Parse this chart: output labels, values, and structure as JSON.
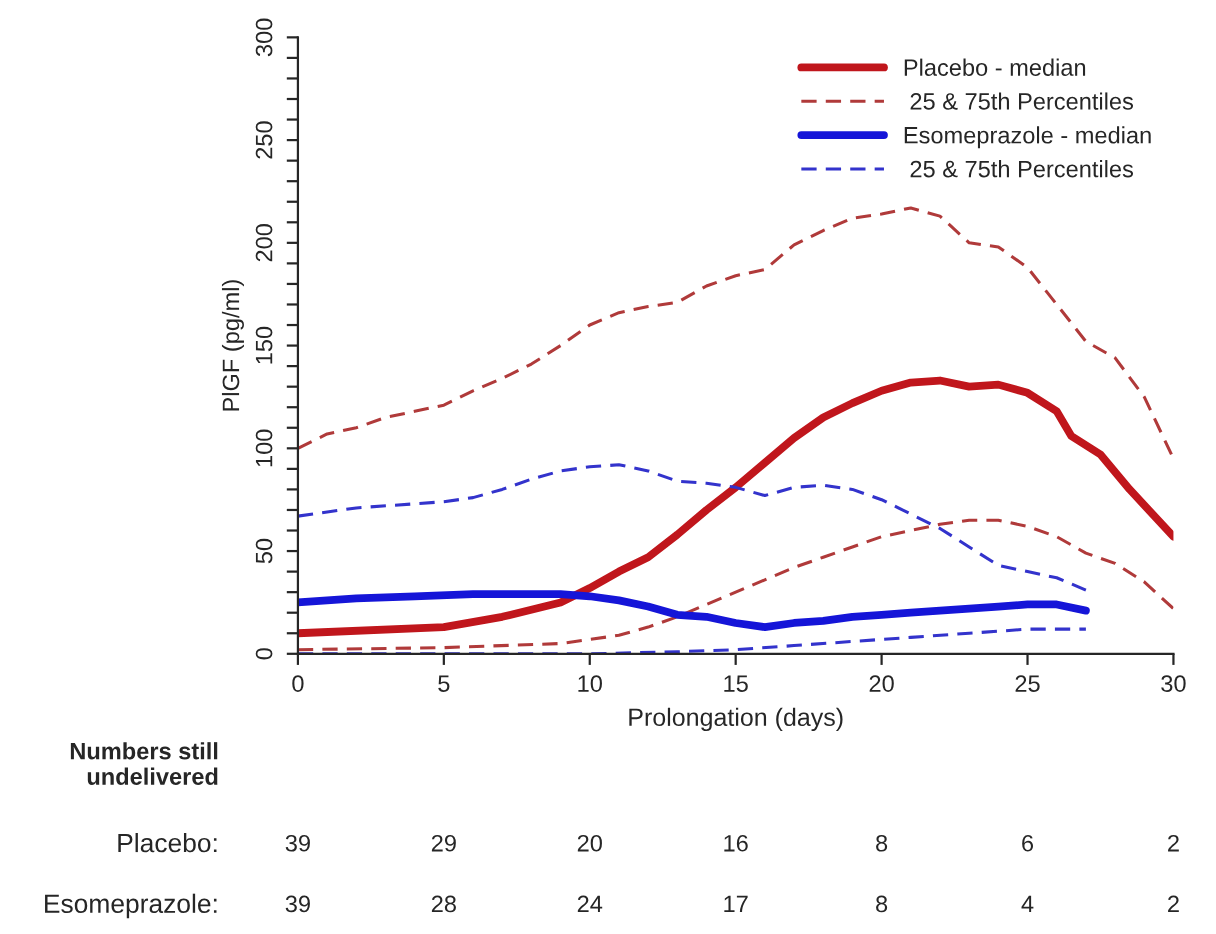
{
  "chart_data": {
    "type": "line",
    "xlabel": "Prolongation (days)",
    "ylabel": "PlGF (pg/ml)",
    "xlim": [
      0,
      30
    ],
    "xticks": [
      0,
      5,
      10,
      15,
      20,
      25,
      30
    ],
    "ylim": [
      0,
      300
    ],
    "yticks": [
      0,
      {
        "value": 10,
        "label": null
      },
      {
        "value": 20,
        "label": null
      },
      {
        "value": 30,
        "label": null
      },
      {
        "value": 40,
        "label": null
      },
      50,
      {
        "value": 60,
        "label": null
      },
      {
        "value": 70,
        "label": null
      },
      {
        "value": 80,
        "label": null
      },
      {
        "value": 90,
        "label": null
      },
      100,
      {
        "value": 110,
        "label": null
      },
      {
        "value": 120,
        "label": null
      },
      {
        "value": 130,
        "label": null
      },
      {
        "value": 140,
        "label": null
      },
      150,
      {
        "value": 160,
        "label": null
      },
      {
        "value": 170,
        "label": null
      },
      {
        "value": 180,
        "label": null
      },
      {
        "value": 190,
        "label": null
      },
      200,
      {
        "value": 210,
        "label": null
      },
      {
        "value": 220,
        "label": null
      },
      {
        "value": 230,
        "label": null
      },
      {
        "value": 240,
        "label": null
      },
      250,
      {
        "value": 260,
        "label": null
      },
      {
        "value": 270,
        "label": null
      },
      {
        "value": 280,
        "label": null
      },
      {
        "value": 290,
        "label": null
      },
      300
    ],
    "grid": false,
    "legend": "top right",
    "marker": "none",
    "series": [
      {
        "name": "Placebo - median",
        "color": "#c0161c",
        "line_style": "solid",
        "x": [
          0,
          5,
          7,
          9,
          10,
          11,
          12,
          13,
          14,
          15,
          16,
          17,
          18,
          19,
          20,
          21,
          22,
          23,
          24,
          25,
          26,
          26.5,
          27.5,
          28.5,
          30
        ],
        "values": [
          10,
          13,
          18,
          25,
          32,
          40,
          47,
          58,
          70,
          81,
          93,
          105,
          115,
          122,
          128,
          132,
          133,
          130,
          131,
          127,
          118,
          106,
          97,
          80,
          57
        ]
      },
      {
        "name": " 25 & 75th Percentiles",
        "color": "#b03a3a",
        "line_style": "dashed",
        "x": [
          0,
          1,
          2,
          3,
          4,
          5,
          6,
          7,
          8,
          9,
          10,
          11,
          12,
          13,
          14,
          15,
          16,
          17,
          18,
          19,
          20,
          21,
          22,
          23,
          24,
          25,
          26,
          27,
          28,
          29,
          30
        ],
        "values": [
          100,
          107,
          110,
          115,
          118,
          121,
          128,
          134,
          141,
          150,
          160,
          166,
          169,
          171,
          179,
          184,
          187,
          199,
          206,
          212,
          214,
          217,
          213,
          200,
          198,
          188,
          170,
          152,
          144,
          125,
          95
        ]
      },
      {
        "color": "#b03a3a",
        "line_style": "dashed",
        "x": [
          0,
          5,
          9,
          10,
          11,
          12,
          13,
          14,
          15,
          16,
          17,
          18,
          19,
          20,
          21,
          22,
          23,
          24,
          25,
          26,
          27,
          28,
          29,
          30
        ],
        "values": [
          2,
          3,
          5,
          7,
          9,
          13,
          18,
          24,
          30,
          36,
          42,
          47,
          52,
          57,
          60,
          63,
          65,
          65,
          62,
          57,
          49,
          44,
          35,
          22
        ]
      },
      {
        "name": "Esomeprazole - median",
        "color": "#1515d8",
        "line_style": "solid",
        "x": [
          0,
          2,
          4,
          6,
          8,
          9,
          10,
          11,
          12,
          13,
          14,
          15,
          16,
          17,
          18,
          19,
          20,
          21,
          22,
          23,
          24,
          25,
          26,
          27
        ],
        "values": [
          25,
          27,
          28,
          29,
          29,
          29,
          28,
          26,
          23,
          19,
          18,
          15,
          13,
          15,
          16,
          18,
          19,
          20,
          21,
          22,
          23,
          24,
          24,
          21
        ]
      },
      {
        "name": " 25 & 75th Percentiles",
        "color": "#3333cc",
        "line_style": "dashed",
        "x": [
          0,
          2,
          5,
          6,
          7,
          8,
          9,
          10,
          11,
          12,
          13,
          14,
          15,
          16,
          17,
          18,
          19,
          20,
          21,
          22,
          23,
          24,
          25,
          26,
          27
        ],
        "values": [
          67,
          71,
          74,
          76,
          80,
          85,
          89,
          91,
          92,
          89,
          84,
          83,
          81,
          77,
          81,
          82,
          80,
          75,
          68,
          61,
          52,
          43,
          40,
          37,
          31
        ]
      },
      {
        "color": "#3333cc",
        "line_style": "dashed",
        "x": [
          0,
          5,
          10,
          13,
          15,
          17,
          19,
          21,
          23,
          25,
          27
        ],
        "values": [
          0,
          0,
          0,
          1,
          2,
          4,
          6,
          8,
          10,
          12,
          12
        ]
      }
    ],
    "annotations": [
      "Numbers still\nundelivered",
      "Placebo:",
      "39",
      "29",
      "20",
      "16",
      "8",
      "6",
      "2",
      "Esomeprazole:",
      "39",
      "28",
      "24",
      "17",
      "8",
      "4",
      "2"
    ]
  }
}
